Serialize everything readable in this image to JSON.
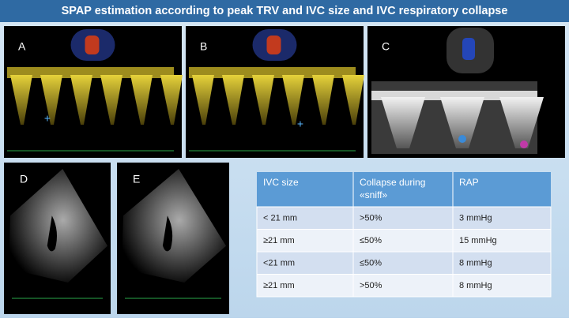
{
  "header": {
    "title": "SPAP estimation according to peak TRV and IVC size and IVC respiratory collapse"
  },
  "panels": [
    {
      "label": "A"
    },
    {
      "label": "B"
    },
    {
      "label": "C"
    },
    {
      "label": "D"
    },
    {
      "label": "E"
    }
  ],
  "table": {
    "columns": [
      "IVC size",
      "Collapse during «sniff»",
      "RAP"
    ],
    "rows": [
      [
        "< 21 mm",
        ">50%",
        "3 mmHg"
      ],
      [
        "≥21 mm",
        "≤50%",
        "15 mmHg"
      ],
      [
        "<21 mm",
        "≤50%",
        "8 mmHg"
      ],
      [
        "≥21 mm",
        ">50%",
        "8 mmHg"
      ]
    ]
  }
}
